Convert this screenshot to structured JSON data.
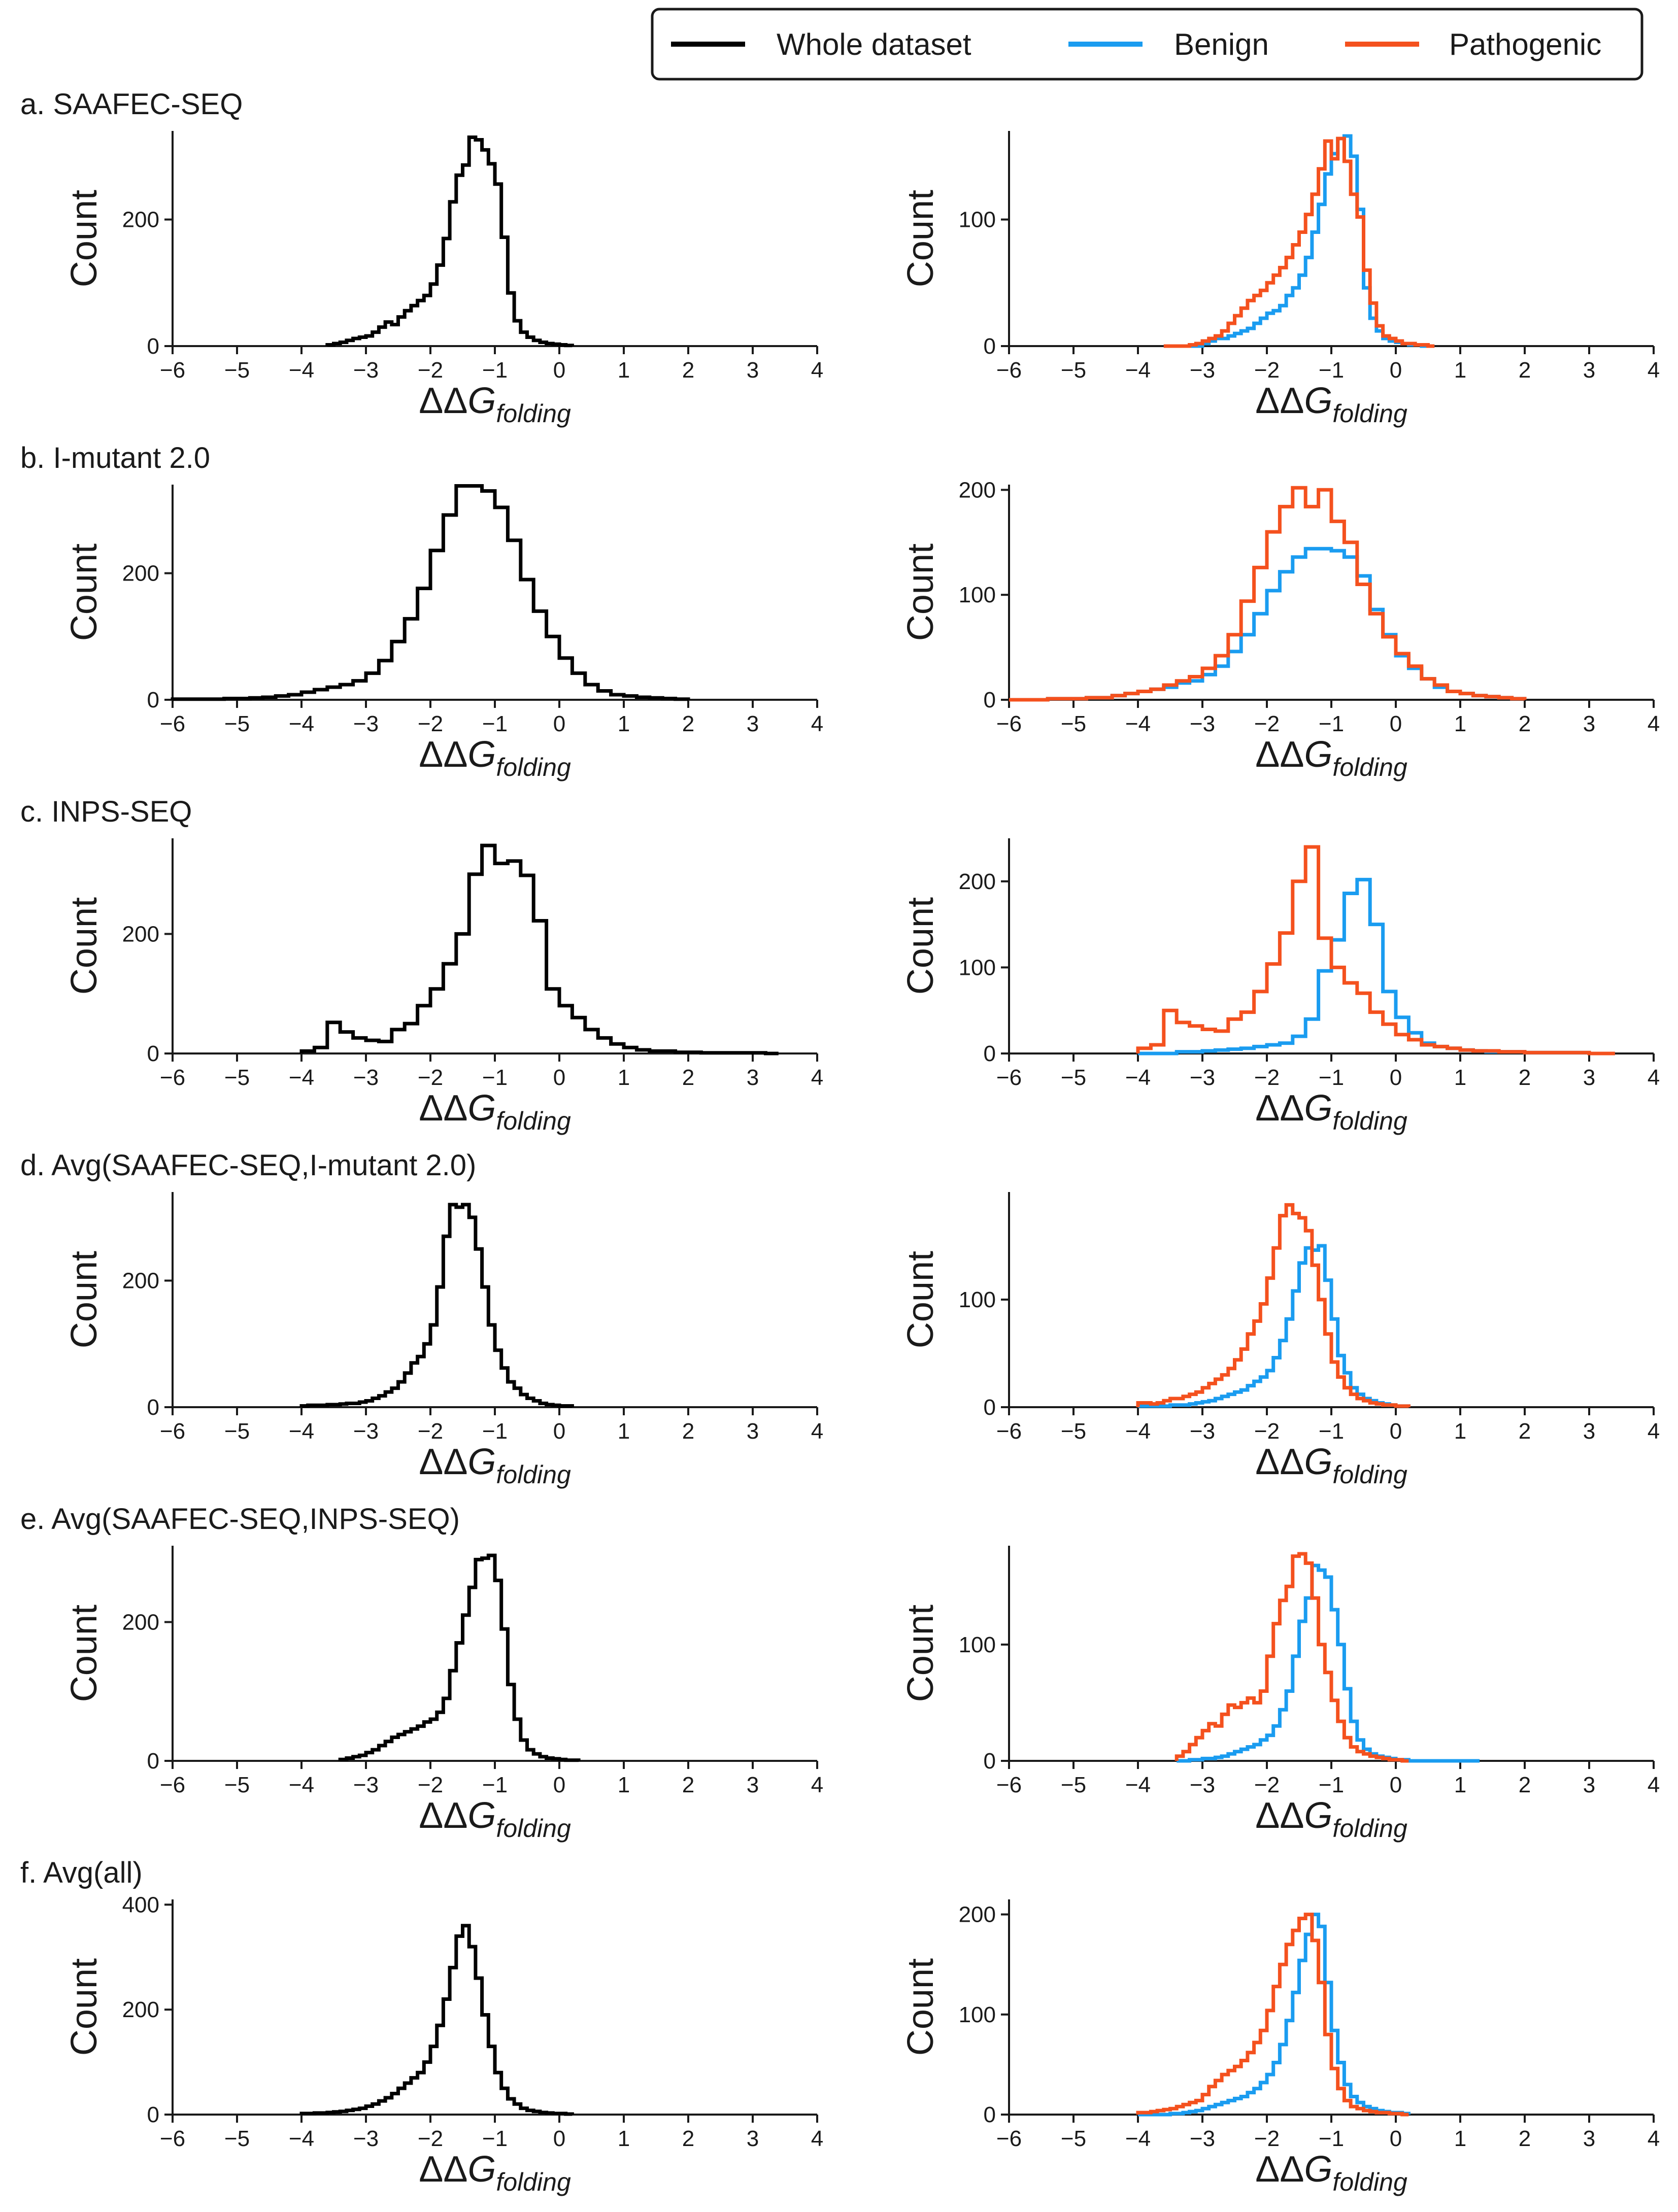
{
  "legend": {
    "entries": [
      {
        "label": "Whole dataset",
        "color": "#000000"
      },
      {
        "label": "Benign",
        "color": "#1a9cf0"
      },
      {
        "label": "Pathogenic",
        "color": "#f4511e"
      }
    ]
  },
  "axis_label_parts": {
    "delta": "ΔΔ",
    "g": "G",
    "subscript": "folding"
  },
  "chart_data": [
    {
      "type": "histogram-step",
      "title": "a. SAAFEC-SEQ",
      "xlabel": "ΔΔG_folding",
      "ylabel": "Count",
      "xlim": [
        -6,
        4
      ],
      "ylim": [
        0,
        340
      ],
      "left_yticks": [
        0,
        200
      ],
      "right_yticks": [
        0,
        100
      ],
      "right_ylim": [
        0,
        170
      ],
      "bins": {
        "start": -3.6,
        "width": 0.1
      },
      "whole": [
        2,
        4,
        6,
        9,
        12,
        14,
        16,
        22,
        30,
        38,
        34,
        46,
        56,
        64,
        72,
        80,
        98,
        128,
        170,
        228,
        270,
        286,
        330,
        326,
        310,
        288,
        256,
        172,
        84,
        40,
        22,
        14,
        9,
        6,
        4,
        3,
        2,
        1
      ],
      "benign": [
        0,
        0,
        0,
        0,
        0,
        0,
        2,
        4,
        6,
        6,
        8,
        10,
        12,
        14,
        18,
        22,
        26,
        28,
        32,
        40,
        46,
        56,
        70,
        90,
        112,
        136,
        152,
        164,
        166,
        150,
        108,
        46,
        22,
        12,
        6,
        4,
        3,
        2,
        1,
        1,
        0,
        0
      ],
      "pathogenic": [
        0,
        0,
        0,
        0,
        1,
        2,
        4,
        6,
        8,
        12,
        18,
        24,
        30,
        36,
        40,
        44,
        50,
        56,
        62,
        70,
        80,
        90,
        104,
        120,
        140,
        162,
        148,
        164,
        146,
        120,
        102,
        60,
        34,
        16,
        8,
        6,
        4,
        2,
        2,
        1,
        1,
        0
      ]
    },
    {
      "type": "histogram-step",
      "title": "b. I-mutant 2.0",
      "xlabel": "ΔΔG_folding",
      "ylabel": "Count",
      "xlim": [
        -6,
        4
      ],
      "ylim": [
        0,
        340
      ],
      "left_yticks": [
        0,
        200
      ],
      "right_yticks": [
        0,
        100,
        200
      ],
      "right_ylim": [
        0,
        205
      ],
      "bins": {
        "start": -6.0,
        "width": 0.2
      },
      "whole": [
        1,
        1,
        1,
        1,
        2,
        2,
        3,
        4,
        6,
        8,
        12,
        16,
        20,
        24,
        30,
        42,
        62,
        92,
        128,
        176,
        236,
        292,
        338,
        338,
        330,
        304,
        252,
        190,
        140,
        100,
        66,
        42,
        24,
        14,
        8,
        6,
        4,
        3,
        2,
        1
      ],
      "benign": [
        0,
        0,
        0,
        1,
        1,
        1,
        2,
        2,
        4,
        6,
        8,
        10,
        12,
        16,
        18,
        24,
        32,
        46,
        62,
        82,
        104,
        122,
        136,
        144,
        144,
        142,
        136,
        118,
        86,
        62,
        42,
        30,
        20,
        12,
        8,
        6,
        4,
        3,
        2,
        1
      ],
      "pathogenic": [
        0,
        0,
        0,
        1,
        1,
        1,
        2,
        2,
        4,
        6,
        8,
        10,
        14,
        18,
        22,
        30,
        42,
        62,
        94,
        126,
        160,
        184,
        202,
        184,
        200,
        170,
        150,
        110,
        82,
        60,
        44,
        32,
        20,
        14,
        8,
        6,
        4,
        3,
        2,
        1
      ]
    },
    {
      "type": "histogram-step",
      "title": "c. INPS-SEQ",
      "xlabel": "ΔΔG_folding",
      "ylabel": "Count",
      "xlim": [
        -6,
        4
      ],
      "ylim": [
        0,
        360
      ],
      "left_yticks": [
        0,
        200
      ],
      "right_yticks": [
        0,
        100,
        200
      ],
      "right_ylim": [
        0,
        250
      ],
      "bins": {
        "start": -4.0,
        "width": 0.2
      },
      "whole": [
        4,
        10,
        52,
        36,
        26,
        22,
        20,
        40,
        50,
        80,
        108,
        150,
        200,
        300,
        348,
        318,
        322,
        298,
        222,
        108,
        80,
        60,
        40,
        26,
        16,
        10,
        6,
        4,
        4,
        2,
        2,
        1,
        1,
        1,
        1,
        1,
        0
      ],
      "benign": [
        0,
        0,
        0,
        2,
        2,
        3,
        4,
        5,
        6,
        8,
        10,
        12,
        20,
        40,
        96,
        132,
        186,
        202,
        150,
        72,
        42,
        24,
        12,
        8,
        6,
        4,
        3,
        2,
        2,
        2,
        1,
        1,
        1,
        1,
        1,
        0,
        0
      ],
      "pathogenic": [
        6,
        10,
        50,
        36,
        32,
        28,
        26,
        40,
        48,
        72,
        104,
        140,
        200,
        240,
        134,
        100,
        82,
        70,
        48,
        34,
        22,
        16,
        10,
        8,
        6,
        4,
        3,
        3,
        2,
        2,
        1,
        1,
        1,
        1,
        1,
        0,
        0
      ]
    },
    {
      "type": "histogram-step",
      "title": "d. Avg(SAAFEC-SEQ,I-mutant 2.0)",
      "xlabel": "ΔΔG_folding",
      "ylabel": "Count",
      "xlim": [
        -6,
        4
      ],
      "ylim": [
        0,
        340
      ],
      "left_yticks": [
        0,
        200
      ],
      "right_yticks": [
        0,
        100
      ],
      "right_ylim": [
        0,
        200
      ],
      "bins": {
        "start": -4.0,
        "width": 0.1
      },
      "whole": [
        2,
        3,
        3,
        3,
        4,
        4,
        5,
        6,
        6,
        8,
        10,
        14,
        18,
        24,
        30,
        40,
        54,
        70,
        80,
        100,
        130,
        190,
        270,
        320,
        316,
        320,
        300,
        250,
        190,
        130,
        90,
        62,
        40,
        30,
        20,
        14,
        10,
        6,
        4,
        3,
        2,
        2
      ],
      "benign": [
        1,
        1,
        1,
        1,
        1,
        2,
        2,
        2,
        3,
        4,
        5,
        6,
        8,
        10,
        12,
        14,
        16,
        20,
        24,
        28,
        34,
        46,
        62,
        82,
        108,
        134,
        148,
        146,
        150,
        118,
        82,
        48,
        32,
        18,
        12,
        8,
        6,
        4,
        3,
        2,
        1,
        1
      ],
      "pathogenic": [
        4,
        4,
        3,
        4,
        6,
        8,
        8,
        10,
        12,
        14,
        18,
        22,
        26,
        30,
        36,
        44,
        54,
        68,
        80,
        96,
        120,
        148,
        178,
        188,
        180,
        176,
        164,
        132,
        100,
        68,
        42,
        28,
        18,
        12,
        8,
        6,
        4,
        3,
        2,
        2,
        1,
        1
      ]
    },
    {
      "type": "histogram-step",
      "title": "e. Avg(SAAFEC-SEQ,INPS-SEQ)",
      "xlabel": "ΔΔG_folding",
      "ylabel": "Count",
      "xlim": [
        -6,
        4
      ],
      "ylim": [
        0,
        310
      ],
      "left_yticks": [
        0,
        200
      ],
      "right_yticks": [
        0,
        100
      ],
      "right_ylim": [
        0,
        185
      ],
      "bins": {
        "start": -3.4,
        "width": 0.1
      },
      "whole": [
        2,
        4,
        6,
        8,
        12,
        16,
        22,
        28,
        34,
        38,
        42,
        46,
        50,
        56,
        60,
        70,
        90,
        130,
        170,
        210,
        250,
        290,
        292,
        296,
        260,
        190,
        110,
        60,
        30,
        16,
        10,
        6,
        4,
        3,
        2,
        1,
        1
      ],
      "benign": [
        0,
        0,
        1,
        1,
        2,
        2,
        3,
        4,
        6,
        8,
        10,
        12,
        14,
        18,
        22,
        30,
        44,
        60,
        90,
        120,
        140,
        168,
        164,
        158,
        130,
        100,
        62,
        34,
        18,
        10,
        6,
        4,
        3,
        2,
        1,
        1,
        0,
        0,
        0,
        0,
        0,
        0,
        0,
        0,
        0,
        0,
        0
      ],
      "pathogenic": [
        4,
        8,
        14,
        20,
        26,
        32,
        30,
        40,
        48,
        46,
        50,
        54,
        50,
        60,
        90,
        118,
        138,
        150,
        176,
        178,
        170,
        140,
        100,
        76,
        52,
        34,
        20,
        12,
        8,
        6,
        4,
        3,
        2,
        1,
        1,
        0
      ]
    },
    {
      "type": "histogram-step",
      "title": "f. Avg(all)",
      "xlabel": "ΔΔG_folding",
      "ylabel": "Count",
      "xlim": [
        -6,
        4
      ],
      "ylim": [
        0,
        410
      ],
      "left_yticks": [
        0,
        200,
        400
      ],
      "right_yticks": [
        0,
        100,
        200
      ],
      "right_ylim": [
        0,
        215
      ],
      "bins": {
        "start": -4.0,
        "width": 0.1
      },
      "whole": [
        2,
        2,
        3,
        3,
        4,
        5,
        6,
        8,
        10,
        12,
        16,
        20,
        26,
        32,
        40,
        50,
        60,
        70,
        80,
        100,
        130,
        170,
        220,
        280,
        340,
        360,
        320,
        260,
        190,
        130,
        80,
        50,
        30,
        20,
        12,
        8,
        6,
        4,
        3,
        2,
        2,
        1
      ],
      "benign": [
        0,
        0,
        0,
        0,
        0,
        1,
        1,
        2,
        3,
        4,
        6,
        8,
        10,
        12,
        14,
        16,
        18,
        22,
        26,
        32,
        40,
        52,
        70,
        94,
        122,
        154,
        180,
        200,
        188,
        132,
        84,
        52,
        30,
        18,
        12,
        8,
        6,
        4,
        3,
        2,
        2,
        1
      ],
      "pathogenic": [
        2,
        2,
        3,
        4,
        5,
        6,
        8,
        10,
        12,
        14,
        20,
        28,
        34,
        40,
        44,
        48,
        54,
        62,
        72,
        84,
        104,
        128,
        150,
        170,
        184,
        196,
        200,
        174,
        132,
        80,
        46,
        26,
        14,
        8,
        6,
        4,
        3,
        2,
        2,
        1,
        1,
        0
      ]
    }
  ]
}
